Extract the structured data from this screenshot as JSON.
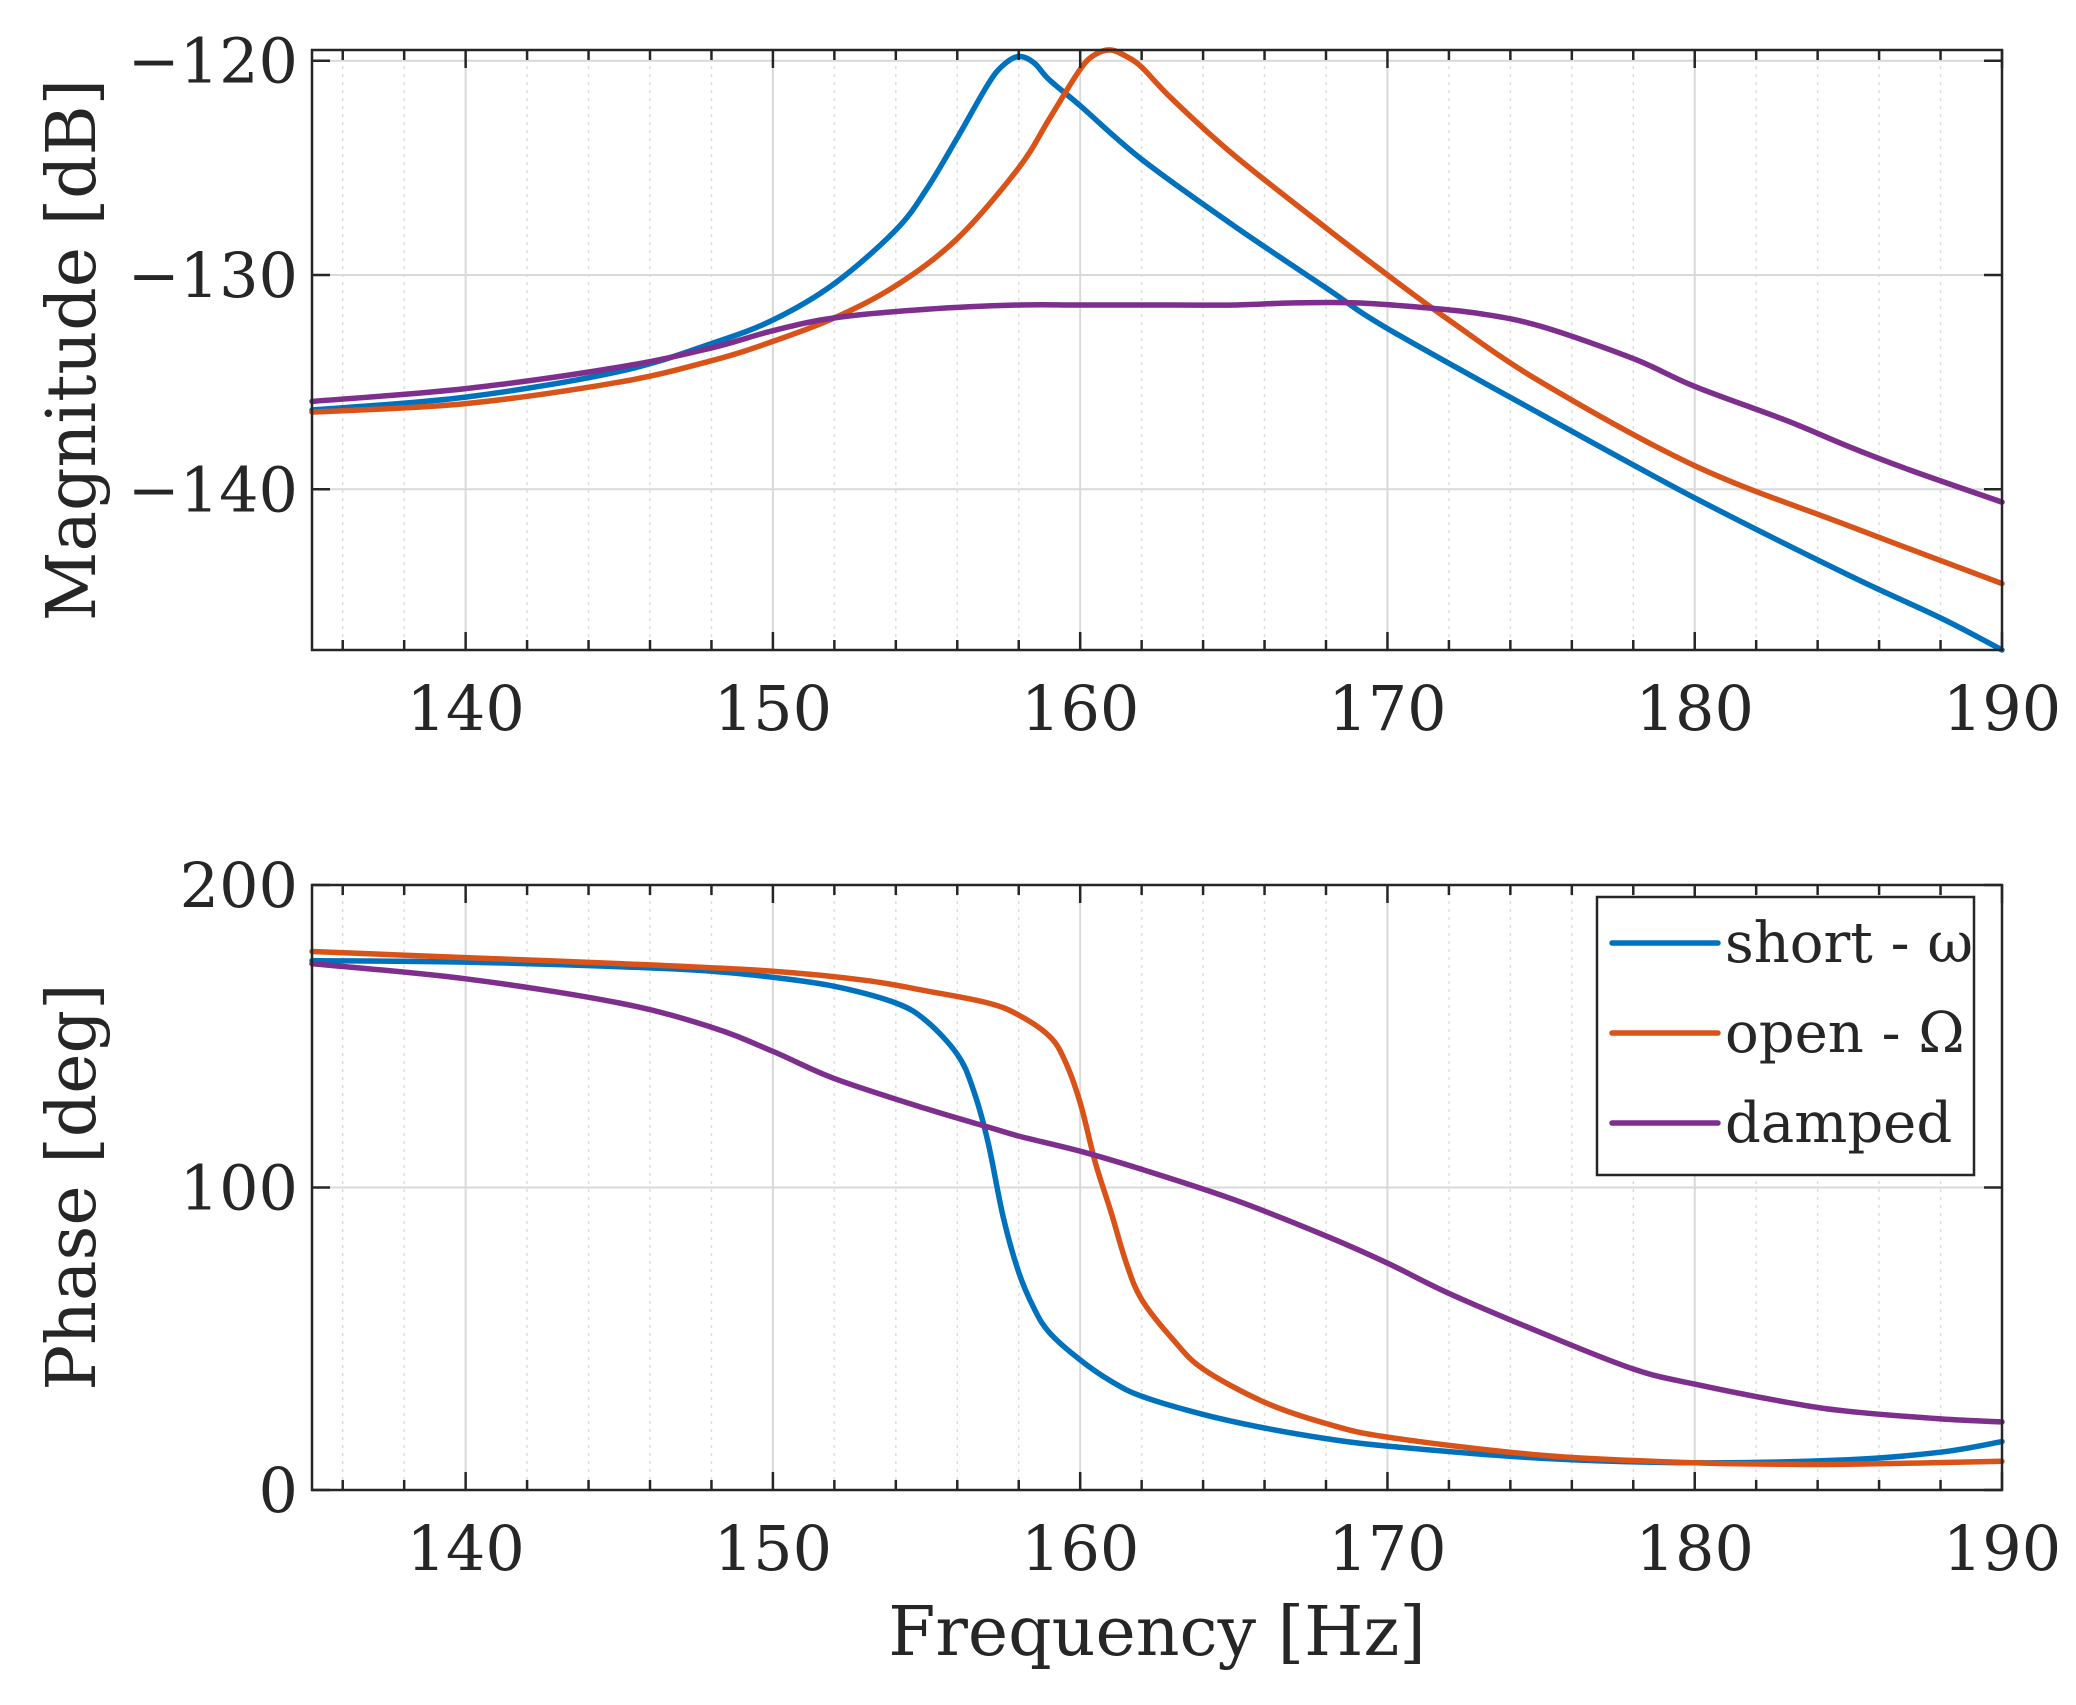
{
  "chart_data": [
    {
      "type": "line",
      "id": "magnitude",
      "xlabel": "",
      "ylabel": "Magnitude [dB]",
      "xlim": [
        135,
        190
      ],
      "ylim": [
        -147.5,
        -119.5
      ],
      "xticks": [
        140,
        150,
        160,
        170,
        180,
        190
      ],
      "xtick_labels": [
        "140",
        "150",
        "160",
        "170",
        "180",
        "190"
      ],
      "yticks": [
        -140,
        -130,
        -120
      ],
      "ytick_labels": [
        "−140",
        "−130",
        "−120"
      ],
      "grid": true,
      "series": [
        {
          "name": "short - ω",
          "color": "#0072BD",
          "x": [
            135,
            140,
            145,
            148,
            150,
            152,
            154,
            155,
            156,
            157,
            157.5,
            158,
            158.5,
            159,
            160,
            162,
            165,
            168,
            170,
            175,
            180,
            185,
            188,
            190
          ],
          "y": [
            -136.3,
            -135.7,
            -134.5,
            -133.2,
            -132.1,
            -130.4,
            -127.9,
            -126.0,
            -123.6,
            -121.1,
            -120.2,
            -119.8,
            -120.1,
            -120.9,
            -122.1,
            -124.6,
            -127.7,
            -130.6,
            -132.5,
            -136.5,
            -140.4,
            -144.0,
            -146.0,
            -147.5
          ]
        },
        {
          "name": "open - Ω",
          "color": "#D95319",
          "x": [
            135,
            140,
            145,
            148,
            150,
            152,
            154,
            156,
            158,
            159,
            160,
            160.5,
            161,
            161.5,
            162,
            163,
            165,
            168,
            170,
            172,
            175,
            180,
            185,
            190
          ],
          "y": [
            -136.4,
            -136.0,
            -135.0,
            -134.0,
            -133.1,
            -132.0,
            -130.5,
            -128.3,
            -125.0,
            -122.7,
            -120.4,
            -119.7,
            -119.5,
            -119.8,
            -120.3,
            -121.8,
            -124.4,
            -127.8,
            -130.0,
            -132.1,
            -135.0,
            -138.9,
            -141.7,
            -144.4
          ]
        },
        {
          "name": "damped",
          "color": "#7E2F8E",
          "x": [
            135,
            140,
            145,
            148,
            150,
            152,
            155,
            158,
            160,
            163,
            165,
            167,
            169,
            171,
            173,
            175,
            178,
            180,
            183,
            185,
            187,
            190
          ],
          "y": [
            -135.9,
            -135.3,
            -134.3,
            -133.4,
            -132.6,
            -132.0,
            -131.6,
            -131.4,
            -131.4,
            -131.4,
            -131.4,
            -131.3,
            -131.3,
            -131.5,
            -131.8,
            -132.4,
            -133.9,
            -135.2,
            -136.8,
            -138.0,
            -139.1,
            -140.6
          ]
        }
      ]
    },
    {
      "type": "line",
      "id": "phase",
      "xlabel": "Frequency [Hz]",
      "ylabel": "Phase [deg]",
      "xlim": [
        135,
        190
      ],
      "ylim": [
        0,
        200
      ],
      "xticks": [
        140,
        150,
        160,
        170,
        180,
        190
      ],
      "xtick_labels": [
        "140",
        "150",
        "160",
        "170",
        "180",
        "190"
      ],
      "yticks": [
        0,
        100,
        200
      ],
      "ytick_labels": [
        "0",
        "100",
        "200"
      ],
      "grid": true,
      "legend": {
        "position": "top-right",
        "entries": [
          "short - ω",
          "open - Ω",
          "damped"
        ]
      },
      "series": [
        {
          "name": "short - ω",
          "color": "#0072BD",
          "x": [
            135,
            140,
            145,
            148,
            150,
            152,
            154,
            155,
            156,
            156.5,
            157,
            157.5,
            158,
            158.5,
            159,
            160,
            161,
            162,
            164,
            166,
            168,
            170,
            175,
            180,
            185,
            188,
            190
          ],
          "y": [
            175,
            174.5,
            173,
            171.5,
            169.5,
            166.5,
            161,
            155,
            144,
            133,
            115,
            90,
            72,
            60,
            52,
            43,
            36,
            31,
            25,
            20.5,
            17,
            14.5,
            10.5,
            9,
            10,
            12.5,
            16
          ]
        },
        {
          "name": "open - Ω",
          "color": "#D95319",
          "x": [
            135,
            140,
            145,
            150,
            153,
            155,
            157,
            158,
            159,
            159.5,
            160,
            160.5,
            161,
            161.5,
            162,
            163,
            164,
            166,
            168,
            170,
            175,
            180,
            183,
            185,
            190
          ],
          "y": [
            178,
            176,
            174,
            171.5,
            168.5,
            165,
            161,
            157,
            150,
            142,
            128,
            108,
            92,
            75,
            63,
            50,
            40,
            29,
            22,
            17.5,
            11.5,
            9,
            8.5,
            8.5,
            9.5
          ]
        },
        {
          "name": "damped",
          "color": "#7E2F8E",
          "x": [
            135,
            140,
            145,
            148,
            150,
            152,
            155,
            157,
            158,
            160,
            162,
            165,
            168,
            170,
            172,
            175,
            178,
            180,
            183,
            185,
            188,
            190
          ],
          "y": [
            174,
            169,
            161,
            153,
            145,
            136,
            126,
            120,
            117,
            112,
            106,
            96,
            84,
            75,
            65,
            52,
            40,
            35,
            29,
            26,
            23.5,
            22.5
          ]
        }
      ]
    }
  ]
}
